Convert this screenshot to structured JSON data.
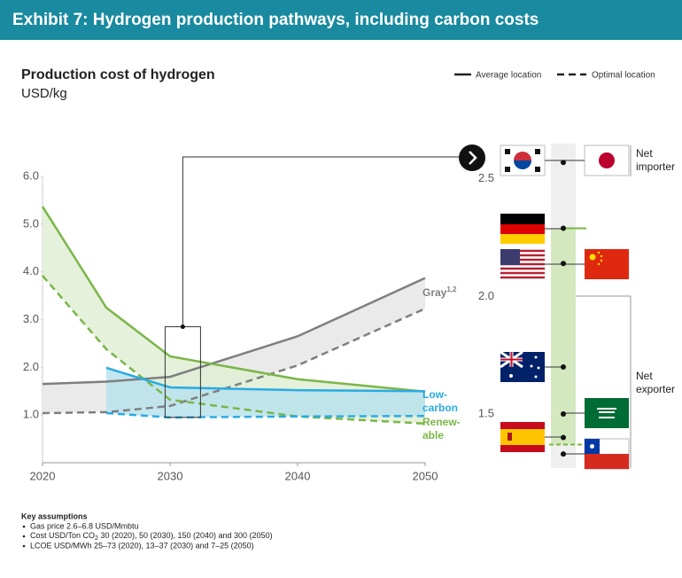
{
  "header": {
    "title": "Exhibit 7: Hydrogen production pathways, including carbon costs"
  },
  "chart_data": [
    {
      "type": "line",
      "title": "Production cost of hydrogen",
      "subtitle": "USD/kg",
      "legend": {
        "average": "Average location",
        "optimal": "Optimal location"
      },
      "x": [
        2020,
        2025,
        2030,
        2040,
        2050
      ],
      "xlim": [
        2020,
        2050
      ],
      "xticks": [
        2020,
        2030,
        2040,
        2050
      ],
      "ylim": [
        0,
        6.0
      ],
      "yticks": [
        {
          "value": 1,
          "label": "1.0"
        },
        {
          "value": 2,
          "label": "2.0"
        },
        {
          "value": 3,
          "label": "3.0"
        },
        {
          "value": 4,
          "label": "4.0"
        },
        {
          "value": 5,
          "label": "5.0"
        },
        {
          "value": 6,
          "label": "6.0"
        }
      ],
      "series": [
        {
          "name": [
            "Gray"
          ],
          "superscript": "1,2",
          "color": "#7f7f7f",
          "band_color": "#e6e6e6",
          "average": [
            1.65,
            1.7,
            1.8,
            2.65,
            3.87
          ],
          "optimal": [
            1.04,
            1.06,
            1.19,
            2.04,
            3.23
          ]
        },
        {
          "name": [
            "Renew-",
            "able"
          ],
          "color": "#7ab648",
          "band_color": "#e1eed3",
          "average": [
            5.37,
            3.25,
            2.23,
            1.75,
            1.49
          ],
          "optimal": [
            3.92,
            2.38,
            1.32,
            0.97,
            0.82
          ]
        },
        {
          "name": [
            "Low-",
            "carbon"
          ],
          "color": "#29abe2",
          "band_color": "#b8e2ec",
          "average": [
            null,
            1.99,
            1.58,
            1.52,
            1.5
          ],
          "optimal": [
            null,
            1.04,
            0.95,
            0.97,
            0.98
          ]
        }
      ],
      "highlight": {
        "x": 2031,
        "low": 0.95,
        "high": 2.85
      }
    },
    {
      "type": "dot",
      "ylim": [
        1.27,
        2.65
      ],
      "yticks": [
        1.5,
        {
          "value": 2,
          "label": "2.0"
        },
        2.5
      ],
      "values": [
        2.57,
        2.29,
        2.14,
        1.7,
        1.5,
        1.4,
        1.33
      ],
      "band": {
        "low": 1.37,
        "high": 2.29,
        "color": "#d4e8c0",
        "line_color": "#7ab648"
      },
      "groups": [
        {
          "label": [
            "Net",
            "importer"
          ]
        },
        {
          "label": [
            "Net",
            "exporter"
          ]
        }
      ]
    }
  ],
  "notes": {
    "title": "Key assumptions",
    "items": [
      "Gas price 2.6–6.8 USD/Mmbtu",
      {
        "text": "Cost USD/Ton CO",
        "sub": "2",
        "rest": " 30 (2020), 50 (2030), 150 (2040) and 300 (2050)"
      },
      "LCOE USD/MWh 25–73 (2020), 13–37 (2030) and 7–25 (2050)"
    ]
  }
}
